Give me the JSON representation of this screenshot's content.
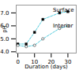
{
  "chart_data": {
    "type": "line",
    "xlabel": "Duration (days)",
    "ylabel": "pH",
    "x": [
      0,
      5,
      10,
      15,
      25,
      30
    ],
    "series": [
      {
        "values": [
          4.6,
          4.6,
          5.5,
          6.5,
          7.0,
          7.1
        ],
        "color": "#55ccdd",
        "marker": "square",
        "line_style": "dashed"
      },
      {
        "values": [
          4.5,
          4.4,
          4.5,
          5.0,
          5.8,
          6.0
        ],
        "color": "#55ccdd",
        "marker": "circle",
        "line_style": "dashed"
      }
    ],
    "annotations": [
      {
        "text": "Surface",
        "x": 21,
        "y": 7.25
      },
      {
        "text": "Interior",
        "x": 21,
        "y": 6.0
      }
    ],
    "xlim": [
      -1,
      35
    ],
    "xticks": [
      0,
      10,
      20,
      30
    ],
    "ylim": [
      3.9,
      7.6
    ],
    "yticks": [
      4,
      5,
      6,
      7
    ]
  }
}
